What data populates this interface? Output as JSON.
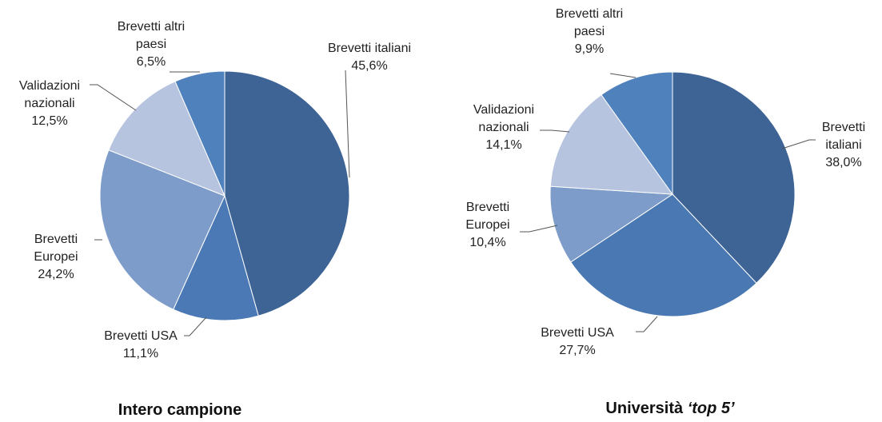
{
  "chart_data": [
    {
      "type": "pie",
      "title": "Intero campione",
      "categories": [
        "Brevetti italiani",
        "Brevetti USA",
        "Brevetti Europei",
        "Validazioni nazionali",
        "Brevetti altri paesi"
      ],
      "values": [
        45.6,
        11.1,
        24.2,
        12.5,
        6.5
      ],
      "value_labels": [
        "45,6%",
        "11,1%",
        "24,2%",
        "12,5%",
        "6,5%"
      ],
      "colors": [
        "#3e6496",
        "#4a79b6",
        "#7e9cc9",
        "#b7c4df",
        "#4f81bd"
      ]
    },
    {
      "type": "pie",
      "title": "Università",
      "title_italic": "‘top 5’",
      "categories": [
        "Brevetti italiani",
        "Brevetti USA",
        "Brevetti Europei",
        "Validazioni nazionali",
        "Brevetti altri paesi"
      ],
      "values": [
        38.0,
        27.7,
        10.4,
        14.1,
        9.9
      ],
      "value_labels": [
        "38,0%",
        "27,7%",
        "10,4%",
        "14,1%",
        "9,9%"
      ],
      "colors": [
        "#3e6496",
        "#4a78b3",
        "#7e9cc9",
        "#b7c4df",
        "#4f81bd"
      ]
    }
  ]
}
